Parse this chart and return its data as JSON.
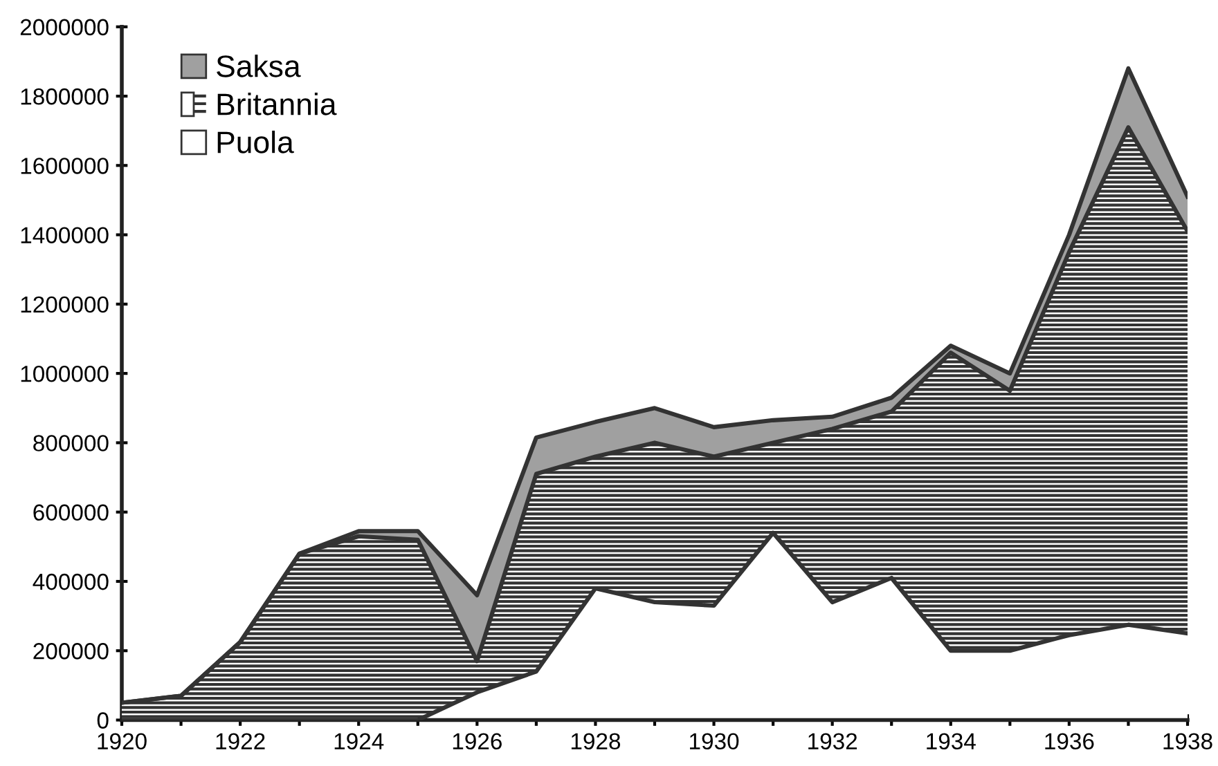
{
  "chart_data": {
    "type": "area",
    "stacked": true,
    "x": [
      1920,
      1921,
      1922,
      1923,
      1924,
      1925,
      1926,
      1927,
      1928,
      1929,
      1930,
      1931,
      1932,
      1933,
      1934,
      1935,
      1936,
      1937,
      1938
    ],
    "series": [
      {
        "name": "Puola",
        "color": "#ffffff",
        "values": [
          0,
          0,
          0,
          0,
          0,
          0,
          80000,
          140000,
          380000,
          340000,
          330000,
          540000,
          340000,
          410000,
          200000,
          200000,
          245000,
          275000,
          250000
        ]
      },
      {
        "name": "Britannia",
        "color": "#ffffff",
        "values": [
          50000,
          70000,
          225000,
          480000,
          530000,
          520000,
          90000,
          570000,
          380000,
          460000,
          430000,
          260000,
          500000,
          480000,
          860000,
          750000,
          1105000,
          1435000,
          1160000
        ]
      },
      {
        "name": "Saksa",
        "color": "#a0a0a0",
        "values": [
          0,
          0,
          0,
          0,
          15000,
          25000,
          190000,
          105000,
          100000,
          100000,
          85000,
          65000,
          35000,
          40000,
          20000,
          50000,
          50000,
          170000,
          100000
        ]
      }
    ],
    "xlim": [
      1920,
      1938
    ],
    "xticks": [
      1920,
      1922,
      1924,
      1926,
      1928,
      1930,
      1932,
      1934,
      1936,
      1938
    ],
    "ylim": [
      0,
      2000000
    ],
    "yticks": [
      0,
      200000,
      400000,
      600000,
      800000,
      1000000,
      1200000,
      1400000,
      1600000,
      1800000,
      2000000
    ],
    "grid": false,
    "legend": "top left"
  }
}
